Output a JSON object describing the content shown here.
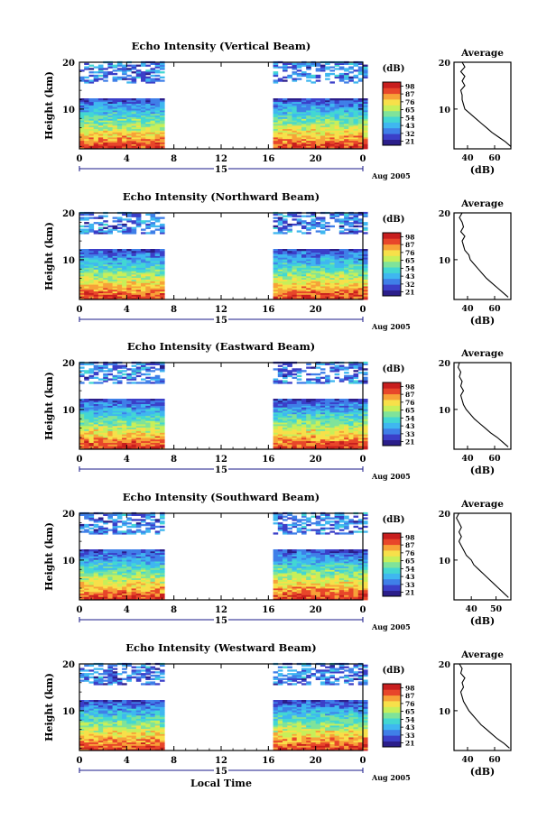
{
  "figure": {
    "xlabel": "Local Time",
    "ylabel": "Height (km)",
    "colorbar_unit": "(dB)",
    "profile_title": "Average",
    "profile_xlabel": "(dB)",
    "date_label": "Aug 2005",
    "day_label": "15"
  },
  "colors": {
    "scale": [
      "#2b1e8a",
      "#3b3fc8",
      "#3f7fe8",
      "#3fb7f0",
      "#43d7d2",
      "#7fe39a",
      "#c7ef5a",
      "#f7e04a",
      "#f7a238",
      "#e8462a",
      "#c81e1e"
    ]
  },
  "chart_data": [
    {
      "type": "heatmap",
      "title": "Echo Intensity (Vertical Beam)",
      "xlabel": "",
      "ylabel": "Height (km)",
      "x_ticks": [
        "0",
        "4",
        "8",
        "12",
        "16",
        "20",
        "0"
      ],
      "y_ticks": [
        "10",
        "20"
      ],
      "xlim": [
        0,
        24
      ],
      "ylim": [
        1.5,
        20
      ],
      "data_gap": [
        7.2,
        16.2
      ],
      "colorbar": {
        "unit": "(dB)",
        "ticks": [
          "21",
          "32",
          "43",
          "54",
          "65",
          "76",
          "87",
          "98"
        ]
      },
      "profile": {
        "title": "Average",
        "xlabel": "(dB)",
        "x_ticks": [
          "40",
          "60"
        ],
        "xlim": [
          30,
          72
        ],
        "y_ticks": [
          "10",
          "20"
        ],
        "height": [
          2,
          3,
          4,
          5,
          6,
          7,
          8,
          9,
          10,
          11,
          12,
          13,
          14,
          15,
          16,
          17,
          18,
          19,
          20
        ],
        "value": [
          72,
          68,
          63,
          58,
          54,
          50,
          46,
          42,
          38,
          37,
          36,
          36,
          35,
          38,
          36,
          38,
          35,
          38,
          36
        ]
      }
    },
    {
      "type": "heatmap",
      "title": "Echo Intensity (Northward Beam)",
      "xlabel": "",
      "ylabel": "Height (km)",
      "x_ticks": [
        "0",
        "4",
        "8",
        "12",
        "16",
        "20",
        "0"
      ],
      "y_ticks": [
        "10",
        "20"
      ],
      "xlim": [
        0,
        24
      ],
      "ylim": [
        1.5,
        20
      ],
      "data_gap": [
        7.2,
        16.2
      ],
      "colorbar": {
        "unit": "(dB)",
        "ticks": [
          "21",
          "32",
          "43",
          "54",
          "65",
          "76",
          "87",
          "98"
        ]
      },
      "profile": {
        "title": "Average",
        "xlabel": "(dB)",
        "x_ticks": [
          "40",
          "60"
        ],
        "xlim": [
          30,
          72
        ],
        "y_ticks": [
          "10",
          "20"
        ],
        "height": [
          2,
          3,
          4,
          5,
          6,
          7,
          8,
          9,
          10,
          11,
          12,
          13,
          14,
          15,
          16,
          17,
          18,
          19,
          20
        ],
        "value": [
          70,
          66,
          62,
          58,
          54,
          51,
          48,
          45,
          42,
          41,
          38,
          37,
          36,
          38,
          35,
          37,
          36,
          34,
          36
        ]
      }
    },
    {
      "type": "heatmap",
      "title": "Echo Intensity (Eastward Beam)",
      "xlabel": "",
      "ylabel": "Height (km)",
      "x_ticks": [
        "0",
        "4",
        "8",
        "12",
        "16",
        "20",
        "0"
      ],
      "y_ticks": [
        "10",
        "20"
      ],
      "xlim": [
        0,
        24
      ],
      "ylim": [
        1.5,
        20
      ],
      "data_gap": [
        7.2,
        16.2
      ],
      "colorbar": {
        "unit": "(dB)",
        "ticks": [
          "21",
          "33",
          "43",
          "54",
          "65",
          "76",
          "87",
          "98"
        ]
      },
      "profile": {
        "title": "Average",
        "xlabel": "(dB)",
        "x_ticks": [
          "40",
          "60"
        ],
        "xlim": [
          30,
          72
        ],
        "y_ticks": [
          "10",
          "20"
        ],
        "height": [
          2,
          3,
          4,
          5,
          6,
          7,
          8,
          9,
          10,
          11,
          12,
          13,
          14,
          15,
          16,
          17,
          18,
          19,
          20
        ],
        "value": [
          70,
          66,
          62,
          57,
          53,
          49,
          45,
          42,
          39,
          37,
          36,
          35,
          37,
          35,
          36,
          34,
          35,
          33,
          34
        ]
      }
    },
    {
      "type": "heatmap",
      "title": "Echo Intensity (Southward Beam)",
      "xlabel": "",
      "ylabel": "Height (km)",
      "x_ticks": [
        "0",
        "4",
        "8",
        "12",
        "16",
        "20",
        "0"
      ],
      "y_ticks": [
        "10",
        "20"
      ],
      "xlim": [
        0,
        24
      ],
      "ylim": [
        1.5,
        20
      ],
      "data_gap": [
        7.2,
        16.2
      ],
      "colorbar": {
        "unit": "(dB)",
        "ticks": [
          "21",
          "33",
          "43",
          "54",
          "65",
          "76",
          "87",
          "98"
        ]
      },
      "profile": {
        "title": "Average",
        "xlabel": "(dB)",
        "x_ticks": [
          "40",
          "50"
        ],
        "xlim": [
          33,
          56
        ],
        "y_ticks": [
          "10",
          "20"
        ],
        "height": [
          2,
          3,
          4,
          5,
          6,
          7,
          8,
          9,
          10,
          11,
          12,
          13,
          14,
          15,
          16,
          17,
          18,
          19,
          20
        ],
        "value": [
          55,
          53,
          51,
          49,
          47,
          45,
          43,
          41,
          40,
          38,
          37,
          36,
          35,
          36,
          35,
          36,
          35,
          34,
          35
        ]
      }
    },
    {
      "type": "heatmap",
      "title": "Echo Intensity (Westward Beam)",
      "xlabel": "Local Time",
      "ylabel": "Height (km)",
      "x_ticks": [
        "0",
        "4",
        "8",
        "12",
        "16",
        "20",
        "0"
      ],
      "y_ticks": [
        "10",
        "20"
      ],
      "xlim": [
        0,
        24
      ],
      "ylim": [
        1.5,
        20
      ],
      "data_gap": [
        7.2,
        16.2
      ],
      "colorbar": {
        "unit": "(dB)",
        "ticks": [
          "21",
          "33",
          "43",
          "54",
          "65",
          "76",
          "87",
          "98"
        ]
      },
      "profile": {
        "title": "Average",
        "xlabel": "(dB)",
        "x_ticks": [
          "40",
          "60"
        ],
        "xlim": [
          30,
          72
        ],
        "y_ticks": [
          "10",
          "20"
        ],
        "height": [
          2,
          3,
          4,
          5,
          6,
          7,
          8,
          9,
          10,
          11,
          12,
          13,
          14,
          15,
          16,
          17,
          18,
          19,
          20
        ],
        "value": [
          71,
          67,
          62,
          58,
          54,
          50,
          47,
          44,
          41,
          39,
          37,
          36,
          35,
          37,
          36,
          38,
          35,
          36,
          34
        ]
      }
    }
  ]
}
